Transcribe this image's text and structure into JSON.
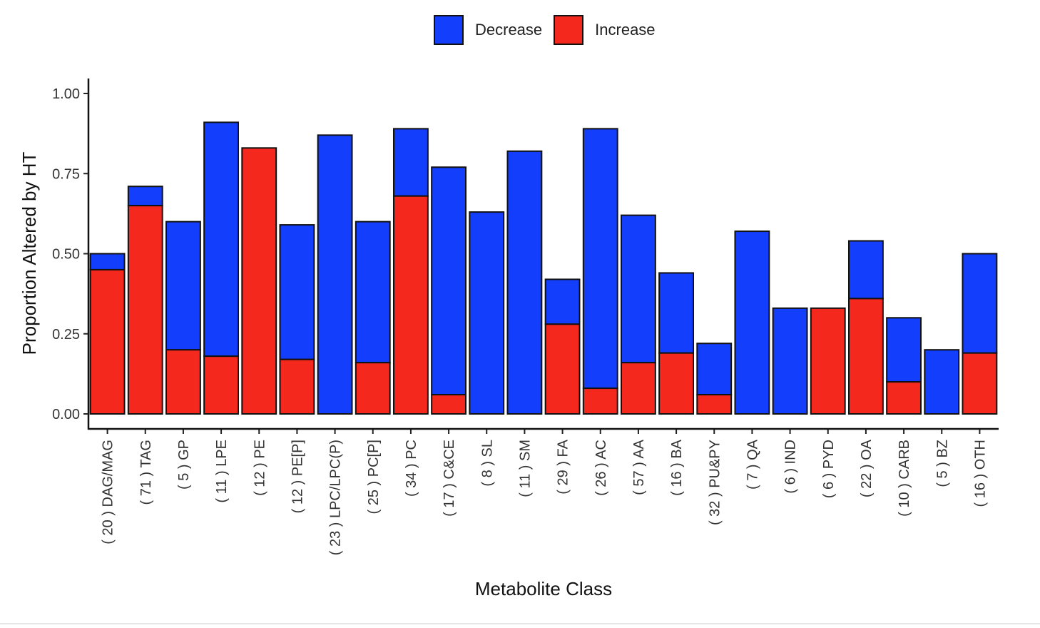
{
  "chart_data": {
    "type": "bar",
    "stacked": true,
    "xlabel": "Metabolite Class",
    "ylabel": "Proportion Altered by HT",
    "ylim": [
      0,
      1.05
    ],
    "yticks": [
      "0.00",
      "0.25",
      "0.50",
      "0.75",
      "1.00"
    ],
    "ytick_values": [
      0,
      0.25,
      0.5,
      0.75,
      1.0
    ],
    "grid": false,
    "legend_position": "top",
    "categories": [
      "( 20 ) DAG/MAG",
      "( 71 ) TAG",
      "( 5 ) GP",
      "( 11 ) LPE",
      "( 12 ) PE",
      "( 12 ) PE[P]",
      "( 23 ) LPC/LPC(P)",
      "( 25 ) PC[P]",
      "( 34 ) PC",
      "( 17 ) C&CE",
      "( 8 ) SL",
      "( 11 ) SM",
      "( 29 ) FA",
      "( 26 ) AC",
      "( 57 ) AA",
      "( 16 ) BA",
      "( 32 ) PU&PY",
      "( 7 ) QA",
      "( 6 ) IND",
      "( 6 ) PYD",
      "( 22 ) OA",
      "( 10 ) CARB",
      "( 5 ) BZ",
      "( 16 ) OTH"
    ],
    "series": [
      {
        "name": "Increase",
        "color": "#f5281e",
        "values": [
          0.45,
          0.65,
          0.2,
          0.18,
          0.83,
          0.17,
          0.0,
          0.16,
          0.68,
          0.06,
          0.0,
          0.0,
          0.28,
          0.08,
          0.16,
          0.19,
          0.06,
          0.0,
          0.0,
          0.33,
          0.36,
          0.1,
          0.0,
          0.19
        ]
      },
      {
        "name": "Decrease",
        "color": "#133ffc",
        "values": [
          0.05,
          0.06,
          0.4,
          0.73,
          0.0,
          0.42,
          0.87,
          0.44,
          0.21,
          0.71,
          0.63,
          0.82,
          0.14,
          0.81,
          0.46,
          0.25,
          0.16,
          0.57,
          0.33,
          0.0,
          0.18,
          0.2,
          0.2,
          0.31
        ]
      }
    ]
  },
  "legend": [
    {
      "label": "Decrease",
      "color": "#133ffc"
    },
    {
      "label": "Increase",
      "color": "#f5281e"
    }
  ]
}
